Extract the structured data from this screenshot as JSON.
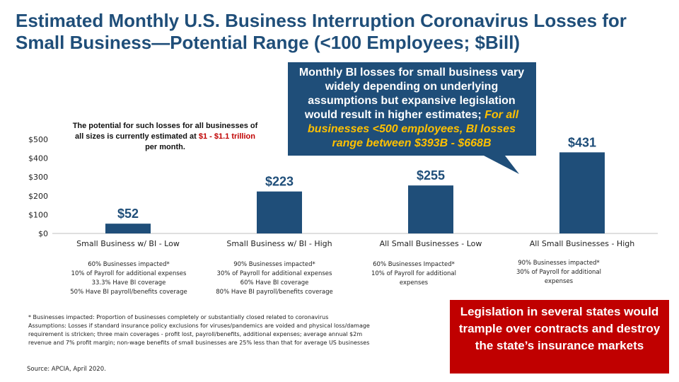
{
  "title": "Estimated Monthly U.S. Business Interruption Coronavirus Losses for Small Business—Potential Range (<100 Employees; $Bill)",
  "chart_data": {
    "type": "bar",
    "categories": [
      "Small Business w/ BI - Low",
      "Small Business w/ BI - High",
      "All Small Businesses - Low",
      "All Small Businesses - High"
    ],
    "values": [
      52,
      223,
      255,
      431
    ],
    "data_labels": [
      "$52",
      "$223",
      "$255",
      "$431"
    ],
    "yticks": [
      0,
      100,
      200,
      300,
      400,
      500
    ],
    "ytick_labels": [
      "$0",
      "$100",
      "$200",
      "$300",
      "$400",
      "$500"
    ],
    "ylim": [
      0,
      500
    ],
    "bar_color": "#1f4e79",
    "grid": false
  },
  "descriptions": [
    [
      "60% Businesses impacted*",
      "10% of Payroll for additional expenses",
      "33.3% Have BI coverage",
      "50% Have BI payroll/benefits coverage"
    ],
    [
      "90% Businesses impacted*",
      "30% of Payroll for additional expenses",
      "60% Have BI coverage",
      "80% Have BI payroll/benefits coverage"
    ],
    [
      "60% Businesses Impacted*",
      "10% of Payroll for additional",
      "expenses"
    ],
    [
      "90% Businesses impacted*",
      "30% of Payroll for additional",
      "expenses"
    ]
  ],
  "callout_left": {
    "line1": "The potential for such losses for all businesses of",
    "line2_prefix": "all sizes is currently estimated at ",
    "line2_highlight": "$1 - $1.1 trillion",
    "line3": "per month."
  },
  "callout_main": {
    "text": "Monthly BI  losses for small business vary widely depending on underlying assumptions but expansive legislation would result in higher estimates; ",
    "emphasis": "For all businesses <500 employees, BI losses range between $393B - $668B",
    "color": "#1f4e79"
  },
  "footnote": {
    "line1": "* Businesses impacted: Proportion of businesses completely or substantially closed related to coronavirus",
    "line2": "Assumptions: Losses if standard insurance policy exclusions for viruses/pandemics are voided and physical loss/damage",
    "line3": "requirement is stricken; three main coverages - profit lost, payroll/benefits, additional expenses; average annual $2m",
    "line4": "revenue and 7% profit margin; non-wage benefits of small businesses are 25% less than that for average US businesses"
  },
  "source": "Source: APCIA, April 2020.",
  "red_box": {
    "text": "Legislation in several states would trample over contracts and destroy the state’s insurance markets",
    "color": "#c00000"
  }
}
